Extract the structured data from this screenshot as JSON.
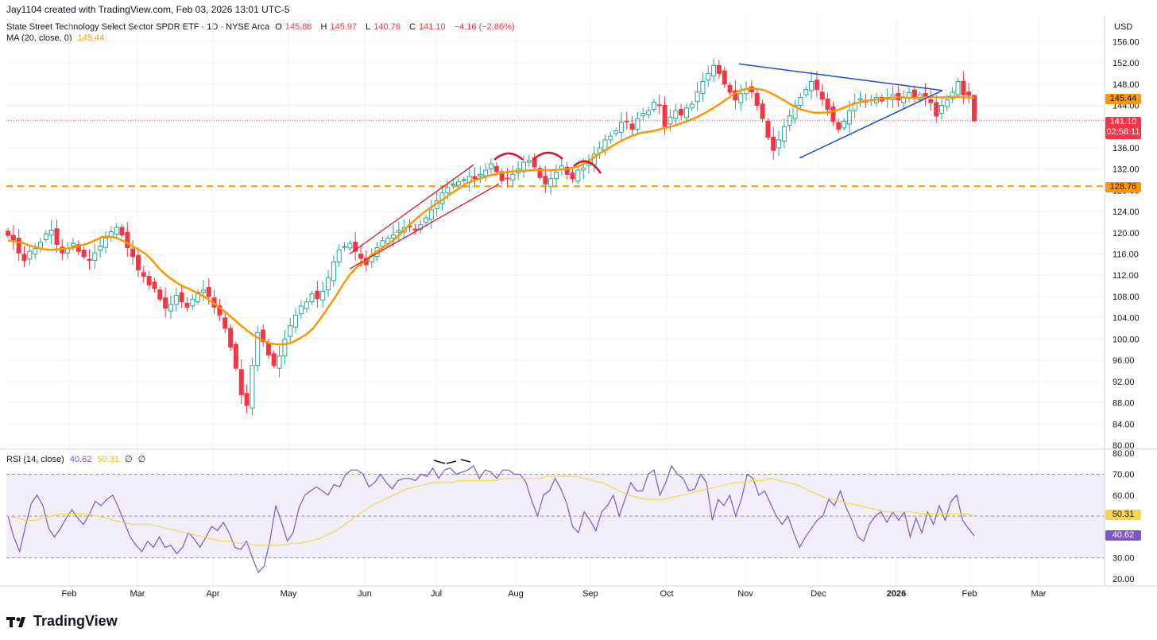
{
  "header": {
    "created_by": "Jay1104 created with TradingView.com, Feb 03, 2026 13:01 UTC-5"
  },
  "legend": {
    "symbol": "State Street Technology Select Sector SPDR ETF · 1D · NYSE Arca",
    "o_label": "O",
    "o_value": "145.88",
    "h_label": "H",
    "h_value": "145.97",
    "l_label": "L",
    "l_value": "140.76",
    "c_label": "C",
    "c_value": "141.10",
    "change": "−4.16 (−2.86%)",
    "ma_label": "MA (20, close, 0)",
    "ma_value": "145.44",
    "rsi_label": "RSI (14, close)",
    "rsi_value": "40.62",
    "rsi_ma_value": "50.31",
    "rsi_extra1": "∅",
    "rsi_extra2": "∅"
  },
  "price_axis": {
    "currency": "USD",
    "last_price": "141.10",
    "countdown": "02:58:11",
    "ma_tag": "145.44",
    "support_tag": "128.76"
  },
  "rsi_axis": {
    "rsi_tag": "40.62",
    "rsi_ma_tag": "50.31"
  },
  "brand": {
    "name": "TradingView"
  },
  "colors": {
    "up": "#26a69a",
    "down": "#f23645",
    "ma": "#ff9800",
    "rsi": "#7e57c2",
    "rsi_ma": "#f5d84a",
    "band": "#ede7f6",
    "trendline_blue": "#1e4dd8",
    "trendline_red": "#e0102b",
    "support": "#ff9800"
  },
  "chart_data": [
    {
      "type": "candlestick",
      "title": "",
      "interval": "1D",
      "ylim": [
        80,
        158
      ],
      "y_ticks": [
        "156.00",
        "152.00",
        "148.00",
        "144.00",
        "140.00",
        "136.00",
        "132.00",
        "128.00",
        "124.00",
        "120.00",
        "116.00",
        "112.00",
        "108.00",
        "104.00",
        "100.00",
        "96.00",
        "92.00",
        "88.00",
        "84.00",
        "80.00"
      ],
      "x_ticks": [
        "Feb",
        "Mar",
        "Apr",
        "May",
        "Jun",
        "Jul",
        "Aug",
        "Sep",
        "Oct",
        "Nov",
        "Dec",
        "2026",
        "Feb",
        "Mar"
      ],
      "last": {
        "open": 145.88,
        "high": 145.97,
        "low": 140.76,
        "close": 141.1
      },
      "closes": [
        119.5,
        118.5,
        116.2,
        114.8,
        116.5,
        117.0,
        118.2,
        119.8,
        120.5,
        117.8,
        116.2,
        117.0,
        118.0,
        116.5,
        115.5,
        114.8,
        116.2,
        117.5,
        119.0,
        120.2,
        121.0,
        119.6,
        117.2,
        115.5,
        113.0,
        111.8,
        110.2,
        109.5,
        107.5,
        105.8,
        106.5,
        108.2,
        107.0,
        106.0,
        107.5,
        108.8,
        109.2,
        108.0,
        106.0,
        104.5,
        102.0,
        98.5,
        94.5,
        89.5,
        87.5,
        95.0,
        101.2,
        99.5,
        97.0,
        95.0,
        96.8,
        100.0,
        102.5,
        104.5,
        106.2,
        107.0,
        108.5,
        107.6,
        109.0,
        111.5,
        114.5,
        116.8,
        117.4,
        118.0,
        116.5,
        115.2,
        114.0,
        115.8,
        117.2,
        118.5,
        119.0,
        119.6,
        120.4,
        121.0,
        121.2,
        120.6,
        121.5,
        122.8,
        124.3,
        126.0,
        127.5,
        128.5,
        129.2,
        129.6,
        130.0,
        130.6,
        130.2,
        131.0,
        131.8,
        133.0,
        131.5,
        129.8,
        130.2,
        131.0,
        132.0,
        133.3,
        133.6,
        132.4,
        130.4,
        129.2,
        130.2,
        131.4,
        132.6,
        131.0,
        130.2,
        131.8,
        132.2,
        133.0,
        134.8,
        136.0,
        137.5,
        138.2,
        139.2,
        140.8,
        141.0,
        139.5,
        141.5,
        142.5,
        143.0,
        144.6,
        144.0,
        140.0,
        141.8,
        143.0,
        142.2,
        143.5,
        144.2,
        146.5,
        148.5,
        150.0,
        151.5,
        150.0,
        148.0,
        146.5,
        145.0,
        146.2,
        147.0,
        146.5,
        144.0,
        141.5,
        138.0,
        135.5,
        137.5,
        140.0,
        142.0,
        144.0,
        145.5,
        147.0,
        148.5,
        147.0,
        145.2,
        143.2,
        141.0,
        139.5,
        141.0,
        143.0,
        144.5,
        145.2,
        144.6,
        145.0,
        145.5,
        144.8,
        145.3,
        146.0,
        145.0,
        145.5,
        146.4,
        145.3,
        146.0,
        145.6,
        144.5,
        142.0,
        144.0,
        145.0,
        146.5,
        148.5,
        146.0,
        145.88,
        141.1
      ],
      "ma20": [
        118.5,
        118.4,
        118.1,
        117.6,
        117.2,
        116.9,
        116.8,
        116.9,
        117.0,
        117.2,
        117.6,
        118.0,
        118.6,
        119.2,
        119.3,
        119.0,
        118.4,
        117.6,
        116.8,
        116.0,
        114.6,
        113.0,
        111.8,
        110.8,
        110.0,
        109.4,
        108.7,
        108.0,
        107.0,
        106.1,
        105.0,
        103.8,
        102.6,
        101.5,
        100.5,
        99.8,
        99.2,
        99.0,
        99.0,
        99.3,
        100.0,
        100.8,
        102.0,
        103.8,
        105.8,
        107.8,
        110.0,
        112.0,
        113.5,
        114.5,
        115.8,
        116.7,
        117.5,
        118.5,
        119.8,
        121.2,
        122.4,
        123.6,
        124.6,
        125.5,
        126.4,
        127.4,
        128.3,
        129.2,
        129.8,
        130.2,
        130.7,
        131.0,
        131.3,
        131.5,
        131.6,
        131.7,
        131.8,
        131.8,
        131.8,
        131.8,
        131.9,
        132.0,
        132.3,
        132.8,
        133.6,
        134.5,
        135.4,
        136.2,
        137.0,
        137.7,
        138.3,
        138.8,
        139.0,
        139.2,
        139.6,
        139.9,
        140.3,
        140.8,
        141.3,
        141.9,
        142.6,
        143.4,
        144.3,
        145.2,
        146.2,
        146.9,
        147.2,
        147.1,
        146.9,
        146.3,
        145.6,
        144.8,
        144.0,
        143.3,
        142.9,
        142.6,
        142.6,
        142.7,
        143.0,
        143.5,
        144.1,
        144.5,
        144.8,
        145.0,
        145.2,
        145.4,
        145.5,
        145.5,
        145.4,
        145.4,
        145.5,
        145.6,
        145.5,
        145.5,
        145.6,
        145.6,
        145.5,
        145.44
      ]
    },
    {
      "type": "line",
      "title": "",
      "ylim": [
        20,
        80
      ],
      "y_ticks": [
        "80.00",
        "70.00",
        "60.00",
        "50.00",
        "40.00",
        "30.00",
        "20.00"
      ],
      "band": [
        30,
        70
      ],
      "midline": 50,
      "series": [
        {
          "values": [
            50,
            40,
            33,
            45,
            56,
            60,
            55,
            44,
            40,
            44,
            49,
            53,
            49,
            46,
            51,
            57,
            55,
            58,
            60,
            54,
            47,
            40,
            36,
            33,
            38,
            35,
            40,
            35,
            36,
            32,
            35,
            42,
            39,
            35,
            40,
            45,
            43,
            47,
            42,
            35,
            34,
            38,
            30,
            23,
            26,
            38,
            55,
            47,
            38,
            42,
            54,
            60,
            62,
            64,
            62,
            60,
            65,
            64,
            70,
            72,
            72,
            70,
            64,
            66,
            70,
            66,
            63,
            67,
            68,
            68,
            67,
            70,
            69,
            73,
            68,
            72,
            73,
            70,
            71,
            72,
            74,
            68,
            72,
            71,
            68,
            72,
            72,
            70,
            70,
            66,
            57,
            50,
            60,
            62,
            68,
            63,
            56,
            45,
            42,
            52,
            48,
            43,
            52,
            55,
            60,
            50,
            58,
            66,
            62,
            62,
            70,
            72,
            60,
            66,
            74,
            70,
            68,
            62,
            63,
            70,
            66,
            48,
            58,
            55,
            60,
            50,
            58,
            70,
            68,
            60,
            62,
            56,
            50,
            46,
            50,
            42,
            35,
            40,
            44,
            48,
            50,
            58,
            55,
            62,
            54,
            48,
            40,
            38,
            46,
            50,
            52,
            47,
            52,
            48,
            52,
            40,
            49,
            42,
            52,
            46,
            55,
            48,
            57,
            60,
            48,
            44,
            40.62
          ]
        },
        {
          "values": [
            50,
            49,
            48,
            48,
            49,
            50,
            51,
            51,
            51,
            51,
            50,
            49,
            48,
            47,
            46,
            46,
            46,
            45,
            44,
            43,
            42,
            41,
            40,
            39,
            38,
            38,
            37,
            37,
            36,
            36,
            36,
            36,
            37,
            37,
            38,
            39,
            41,
            43,
            46,
            49,
            52,
            55,
            57,
            59,
            61,
            63,
            64,
            65,
            66,
            66,
            66,
            67,
            67,
            67,
            67,
            67,
            68,
            68,
            68,
            68,
            68,
            69,
            69,
            69,
            69,
            68,
            67,
            66,
            64,
            62,
            60,
            59,
            58,
            58,
            58,
            59,
            60,
            61,
            62,
            63,
            64,
            65,
            66,
            66,
            67,
            67,
            68,
            67,
            66,
            65,
            63,
            61,
            59,
            58,
            57,
            56,
            55,
            54,
            53,
            52,
            52,
            52,
            52,
            51,
            51,
            51,
            51,
            51,
            51,
            50.31
          ]
        }
      ]
    }
  ]
}
